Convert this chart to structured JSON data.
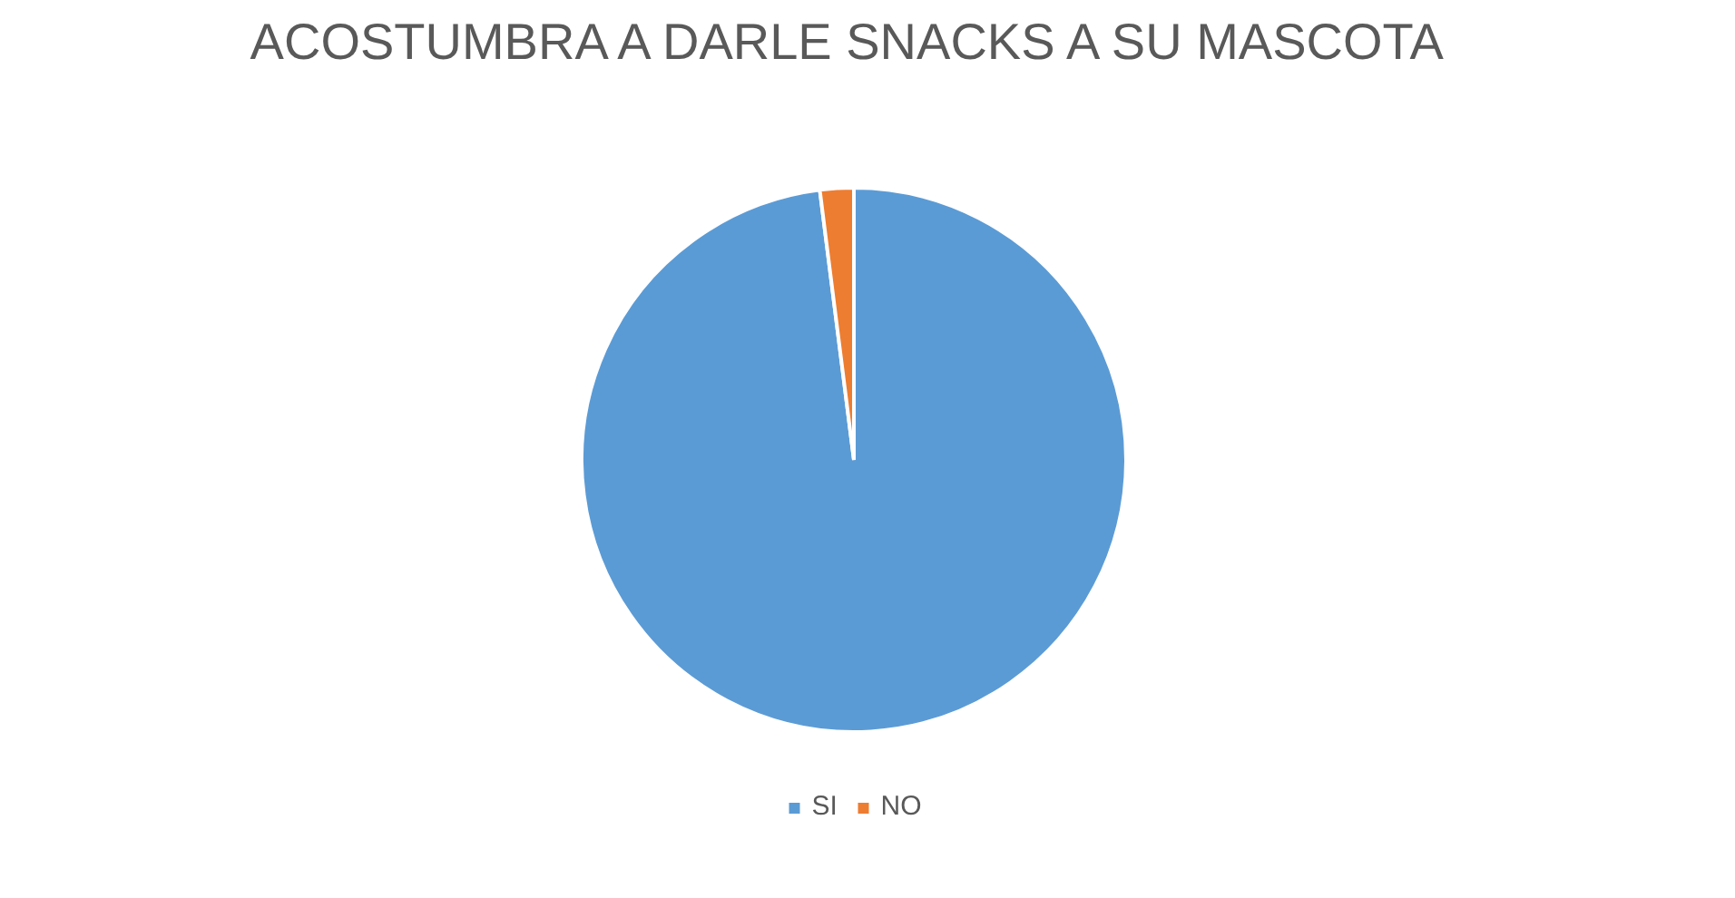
{
  "chart_data": {
    "type": "pie",
    "title": "ACOSTUMBRA A DARLE SNACKS A SU MASCOTA",
    "categories": [
      "SI",
      "NO"
    ],
    "values": [
      98,
      2
    ],
    "colors": [
      "#5b9bd5",
      "#ed7d31"
    ],
    "legend": "bottom"
  }
}
